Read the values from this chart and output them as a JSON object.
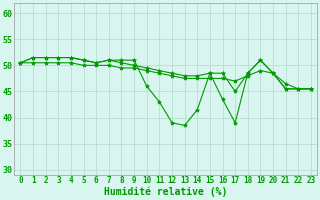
{
  "title": "",
  "xlabel": "Humidité relative (%)",
  "ylabel": "",
  "background_color": "#d8f5f0",
  "grid_color": "#b0d8cc",
  "line_color": "#009900",
  "marker": "*",
  "xlim": [
    -0.5,
    23.5
  ],
  "ylim": [
    29,
    62
  ],
  "yticks": [
    30,
    35,
    40,
    45,
    50,
    55,
    60
  ],
  "xticks": [
    0,
    1,
    2,
    3,
    4,
    5,
    6,
    7,
    8,
    9,
    10,
    11,
    12,
    13,
    14,
    15,
    16,
    17,
    18,
    19,
    20,
    21,
    22,
    23
  ],
  "series": [
    [
      50.5,
      51.5,
      51.5,
      51.5,
      51.5,
      51.0,
      50.5,
      51.0,
      51.0,
      51.0,
      46.0,
      43.0,
      39.0,
      38.5,
      41.5,
      48.5,
      43.5,
      39.0,
      48.5,
      51.0,
      48.5,
      45.5,
      45.5,
      45.5
    ],
    [
      50.5,
      51.5,
      51.5,
      51.5,
      51.5,
      51.0,
      50.5,
      51.0,
      50.5,
      50.0,
      49.5,
      49.0,
      48.5,
      48.0,
      48.0,
      48.5,
      48.5,
      45.0,
      48.5,
      51.0,
      48.5,
      45.5,
      45.5,
      45.5
    ],
    [
      50.5,
      50.5,
      50.5,
      50.5,
      50.5,
      50.0,
      50.0,
      50.0,
      49.5,
      49.5,
      49.0,
      48.5,
      48.0,
      47.5,
      47.5,
      47.5,
      47.5,
      47.0,
      48.0,
      49.0,
      48.5,
      46.5,
      45.5,
      45.5
    ]
  ],
  "xlabel_fontsize": 7,
  "tick_fontsize": 5.5,
  "tick_color": "#009900"
}
